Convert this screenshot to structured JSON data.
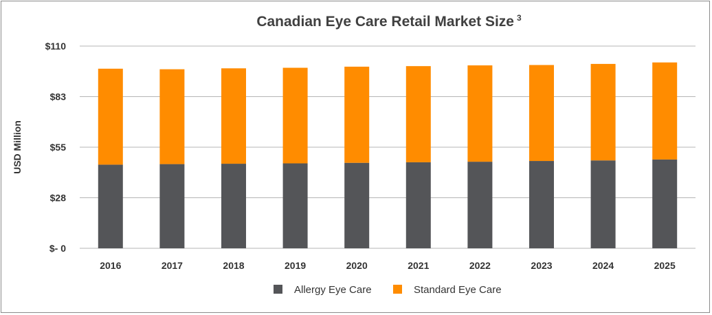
{
  "chart_data": {
    "type": "bar",
    "stacked": true,
    "title": "Canadian Eye Care Retail Market Size",
    "title_superscript": "3",
    "ylabel": "USD Million",
    "xlabel": "",
    "categories": [
      "2016",
      "2017",
      "2018",
      "2019",
      "2020",
      "2021",
      "2022",
      "2023",
      "2024",
      "2025"
    ],
    "series": [
      {
        "name": "Allergy Eye Care",
        "color": "#545558",
        "values": [
          45.5,
          45.8,
          46.0,
          46.2,
          46.5,
          46.8,
          47.1,
          47.5,
          47.8,
          48.3
        ]
      },
      {
        "name": "Standard Eye Care",
        "color": "#FF8C00",
        "values": [
          52.2,
          51.6,
          51.9,
          52.0,
          52.3,
          52.3,
          52.4,
          52.2,
          52.5,
          52.8
        ]
      }
    ],
    "ylim": [
      0,
      110
    ],
    "yticks": [
      0,
      27.5,
      55,
      82.5,
      110
    ],
    "ytick_labels": [
      "$- 0",
      "$28",
      "$55",
      "$83",
      "$110"
    ],
    "grid": true,
    "legend": "bottom"
  }
}
